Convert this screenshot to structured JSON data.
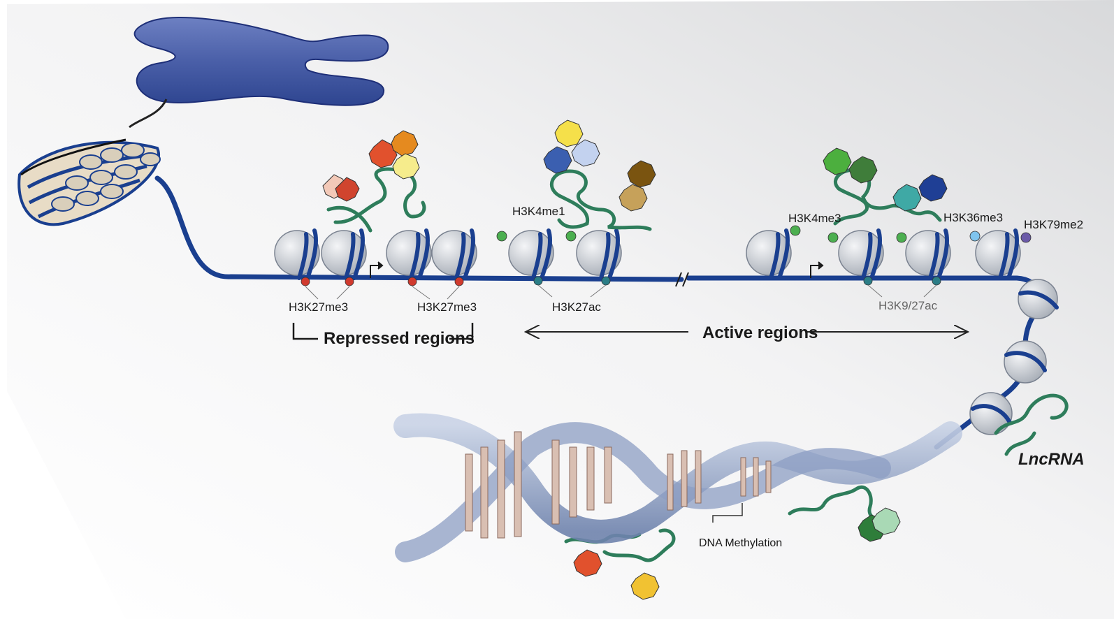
{
  "labels": {
    "h3k27me3_left": "H3K27me3",
    "h3k27me3_right": "H3K27me3",
    "h3k4me1": "H3K4me1",
    "h3k27ac": "H3K27ac",
    "h3k4me3": "H3K4me3",
    "h3k9_27ac": "H3K9/27ac",
    "h3k36me3": "H3K36me3",
    "h3k79me2": "H3K79me2",
    "repressed_regions": "Repressed regions",
    "active_regions": "Active regions",
    "dna_methylation": "DNA Methylation",
    "lncrna": "LncRNA"
  },
  "colors": {
    "chromatin_blue": "#1a3f8f",
    "chromosome_blue": "#3b55a3",
    "rna_green": "#2e7d5b",
    "nucleosome_grey": "#d4d8de",
    "mark_red": "#d03a2e",
    "mark_green": "#4caf50",
    "mark_teal": "#2b7d86",
    "mark_lightblue": "#7fc4ee",
    "mark_purple": "#6b5aa8"
  },
  "icons": [
    "chromosome-icon",
    "chromatin-fiber-icon",
    "nucleosome-icon",
    "histone-mark-icon",
    "protein-complex-icon",
    "dna-helix-icon",
    "transcription-start-arrow-icon"
  ]
}
